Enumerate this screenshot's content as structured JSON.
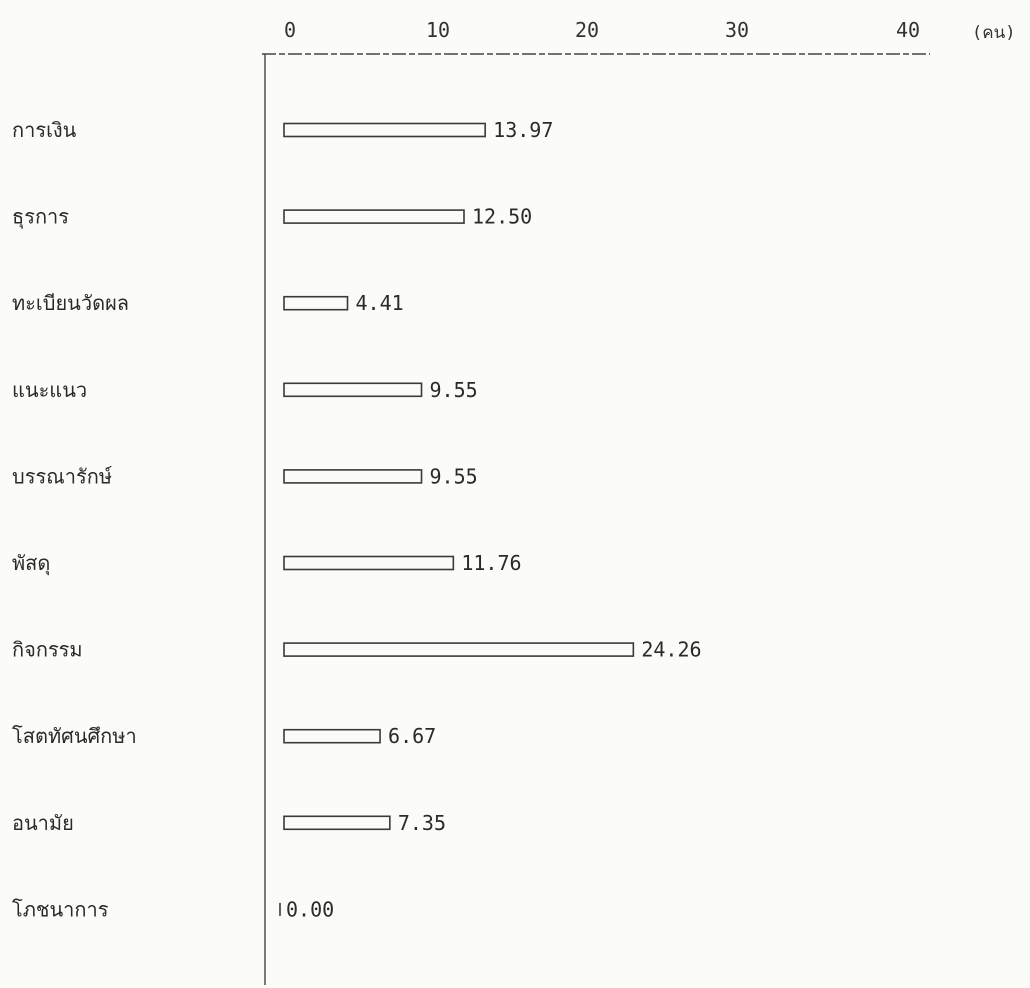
{
  "chart_data": {
    "type": "bar",
    "orientation": "horizontal",
    "unit_label": "(คน)",
    "x_ticks": [
      "0",
      "10",
      "20",
      "30",
      "40"
    ],
    "xlim": [
      0,
      40
    ],
    "categories": [
      "การเงิน",
      "ธุรการ",
      "ทะเบียนวัดผล",
      "แนะแนว",
      "บรรณารักษ์",
      "พัสดุ",
      "กิจกรรม",
      "โสตทัศนศึกษา",
      "อนามัย",
      "โภชนาการ"
    ],
    "values": [
      13.97,
      12.5,
      4.41,
      9.55,
      9.55,
      11.76,
      24.26,
      6.67,
      7.35,
      0.0
    ],
    "value_labels": [
      "13.97",
      "12.50",
      "4.41",
      "9.55",
      "9.55",
      "11.76",
      "24.26",
      "6.67",
      "7.35",
      "0.00"
    ],
    "grid": false
  }
}
